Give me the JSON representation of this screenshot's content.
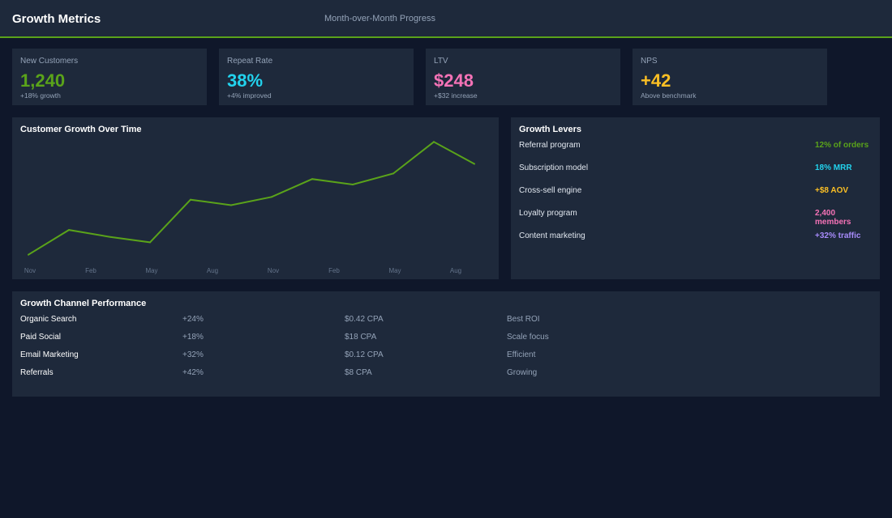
{
  "header": {
    "title": "Growth Metrics",
    "subtitle": "Month-over-Month Progress",
    "accent": "#5aa31a"
  },
  "kpis": [
    {
      "label": "New Customers",
      "value": "1,240",
      "sub": "+18% growth",
      "color": "#5aa31a"
    },
    {
      "label": "Repeat Rate",
      "value": "38%",
      "sub": "+4% improved",
      "color": "#22d3ee"
    },
    {
      "label": "LTV",
      "value": "$248",
      "sub": "+$32 increase",
      "color": "#f472b6"
    },
    {
      "label": "NPS",
      "value": "+42",
      "sub": "Above benchmark",
      "color": "#fbbf24"
    }
  ],
  "chart_data": {
    "type": "line",
    "title": "Customer Growth Over Time",
    "x_tick_labels": [
      "Nov",
      "Feb",
      "May",
      "Aug",
      "Nov",
      "Feb",
      "May",
      "Aug"
    ],
    "values": [
      9,
      27,
      22,
      18,
      49,
      45,
      51,
      64,
      60,
      68,
      91,
      75
    ],
    "ylim": [
      0,
      100
    ],
    "grid": false,
    "color": "#5aa31a"
  },
  "levers": {
    "title": "Growth Levers",
    "items": [
      {
        "name": "Referral program",
        "value": "12% of orders",
        "color": "#5aa31a"
      },
      {
        "name": "Subscription model",
        "value": "18% MRR",
        "color": "#22d3ee"
      },
      {
        "name": "Cross-sell engine",
        "value": "+$8 AOV",
        "color": "#fbbf24"
      },
      {
        "name": "Loyalty program",
        "value": "2,400 members",
        "color": "#f472b6"
      },
      {
        "name": "Content marketing",
        "value": "+32% traffic",
        "color": "#a78bfa"
      }
    ]
  },
  "channels": {
    "title": "Growth Channel Performance",
    "rows": [
      {
        "channel": "Organic Search",
        "growth": "+24%",
        "cpa": "$0.42 CPA",
        "note": "Best ROI"
      },
      {
        "channel": "Paid Social",
        "growth": "+18%",
        "cpa": "$18 CPA",
        "note": "Scale focus"
      },
      {
        "channel": "Email Marketing",
        "growth": "+32%",
        "cpa": "$0.12 CPA",
        "note": "Efficient"
      },
      {
        "channel": "Referrals",
        "growth": "+42%",
        "cpa": "$8 CPA",
        "note": "Growing"
      }
    ]
  }
}
